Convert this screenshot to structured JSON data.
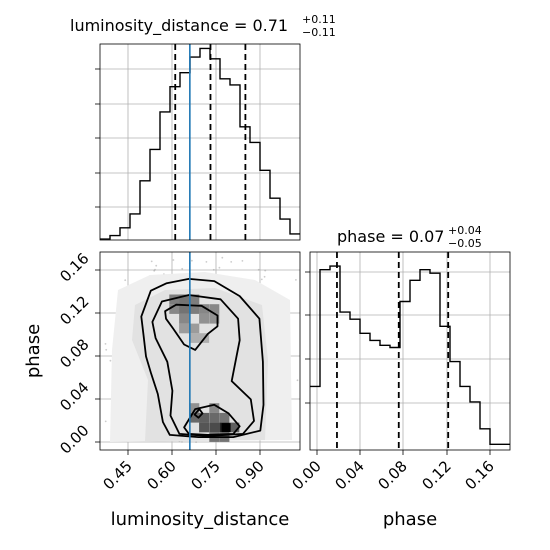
{
  "chart_data": [
    {
      "type": "histogram",
      "panel": "luminosity_distance marginal",
      "title": {
        "main": "luminosity_distance = 0.71",
        "upper": "+0.11",
        "lower": "−0.11"
      },
      "xlim": [
        0.36,
        0.99
      ],
      "bin_edges": [
        0.36,
        0.3915,
        0.423,
        0.4545,
        0.486,
        0.5175,
        0.549,
        0.5805,
        0.612,
        0.6435,
        0.675,
        0.7065,
        0.738,
        0.7695,
        0.801,
        0.8325,
        0.864,
        0.8955,
        0.927,
        0.9585,
        0.99
      ],
      "counts": [
        1,
        5,
        14,
        30,
        68,
        104,
        147,
        176,
        192,
        210,
        220,
        208,
        185,
        178,
        130,
        112,
        80,
        48,
        24,
        7
      ],
      "quantiles": [
        0.597,
        0.708,
        0.818
      ],
      "truth": 0.643
    },
    {
      "type": "histogram2d",
      "panel": "phase vs luminosity_distance",
      "xlabel": "luminosity_distance",
      "ylabel": "phase",
      "xlim": [
        0.36,
        0.99
      ],
      "ylim": [
        -0.012,
        0.172
      ],
      "xticks": [
        "0.45",
        "0.60",
        "0.75",
        "0.90"
      ],
      "yticks": [
        "0.00",
        "0.04",
        "0.08",
        "0.12",
        "0.16"
      ],
      "truth_x": 0.643,
      "density_cells": [
        {
          "x": 0.594,
          "y": 0.128,
          "v": 0.55
        },
        {
          "x": 0.625,
          "y": 0.128,
          "v": 0.6
        },
        {
          "x": 0.657,
          "y": 0.128,
          "v": 0.55
        },
        {
          "x": 0.594,
          "y": 0.119,
          "v": 0.5
        },
        {
          "x": 0.625,
          "y": 0.119,
          "v": 0.6
        },
        {
          "x": 0.657,
          "y": 0.119,
          "v": 0.55
        },
        {
          "x": 0.688,
          "y": 0.119,
          "v": 0.5
        },
        {
          "x": 0.72,
          "y": 0.119,
          "v": 0.5
        },
        {
          "x": 0.625,
          "y": 0.11,
          "v": 0.5
        },
        {
          "x": 0.688,
          "y": 0.11,
          "v": 0.45
        },
        {
          "x": 0.72,
          "y": 0.11,
          "v": 0.45
        },
        {
          "x": 0.625,
          "y": 0.101,
          "v": 0.4
        },
        {
          "x": 0.657,
          "y": 0.101,
          "v": 0.4
        },
        {
          "x": 0.657,
          "y": 0.092,
          "v": 0.3
        },
        {
          "x": 0.688,
          "y": 0.092,
          "v": 0.3
        },
        {
          "x": 0.657,
          "y": 0.027,
          "v": 0.45
        },
        {
          "x": 0.72,
          "y": 0.027,
          "v": 0.5
        },
        {
          "x": 0.657,
          "y": 0.018,
          "v": 0.65
        },
        {
          "x": 0.688,
          "y": 0.018,
          "v": 0.7
        },
        {
          "x": 0.72,
          "y": 0.018,
          "v": 0.65
        },
        {
          "x": 0.752,
          "y": 0.018,
          "v": 0.6
        },
        {
          "x": 0.688,
          "y": 0.009,
          "v": 0.75
        },
        {
          "x": 0.72,
          "y": 0.009,
          "v": 0.8
        },
        {
          "x": 0.752,
          "y": 0.009,
          "v": 1.0
        },
        {
          "x": 0.783,
          "y": 0.009,
          "v": 0.7
        },
        {
          "x": 0.72,
          "y": 0.0,
          "v": 0.6
        },
        {
          "x": 0.752,
          "y": 0.0,
          "v": 0.6
        }
      ],
      "contours": [
        {
          "level": "outer",
          "points": [
            [
              0.49,
              0.112
            ],
            [
              0.52,
              0.136
            ],
            [
              0.57,
              0.143
            ],
            [
              0.64,
              0.147
            ],
            [
              0.72,
              0.145
            ],
            [
              0.8,
              0.131
            ],
            [
              0.862,
              0.11
            ],
            [
              0.873,
              0.07
            ],
            [
              0.875,
              0.03
            ],
            [
              0.865,
              0.006
            ],
            [
              0.78,
              0.0
            ],
            [
              0.67,
              0.0
            ],
            [
              0.58,
              0.002
            ],
            [
              0.558,
              0.014
            ],
            [
              0.542,
              0.04
            ],
            [
              0.52,
              0.06
            ],
            [
              0.505,
              0.075
            ],
            [
              0.497,
              0.095
            ]
          ]
        },
        {
          "level": "middle",
          "points": [
            [
              0.525,
              0.107
            ],
            [
              0.555,
              0.126
            ],
            [
              0.64,
              0.132
            ],
            [
              0.74,
              0.128
            ],
            [
              0.795,
              0.11
            ],
            [
              0.8,
              0.09
            ],
            [
              0.79,
              0.075
            ],
            [
              0.775,
              0.052
            ],
            [
              0.835,
              0.035
            ],
            [
              0.845,
              0.015
            ],
            [
              0.81,
              0.003
            ],
            [
              0.7,
              0.001
            ],
            [
              0.61,
              0.003
            ],
            [
              0.582,
              0.02
            ],
            [
              0.588,
              0.043
            ],
            [
              0.572,
              0.07
            ],
            [
              0.535,
              0.092
            ]
          ]
        },
        {
          "level": "inner",
          "points": [
            [
              0.565,
              0.117
            ],
            [
              0.6,
              0.123
            ],
            [
              0.68,
              0.122
            ],
            [
              0.73,
              0.113
            ],
            [
              0.73,
              0.103
            ],
            [
              0.7,
              0.096
            ],
            [
              0.66,
              0.081
            ],
            [
              0.625,
              0.086
            ],
            [
              0.59,
              0.101
            ],
            [
              0.568,
              0.11
            ]
          ]
        },
        {
          "level": "inner-bottom",
          "points": [
            [
              0.625,
              0.009
            ],
            [
              0.66,
              0.026
            ],
            [
              0.72,
              0.03
            ],
            [
              0.765,
              0.022
            ],
            [
              0.8,
              0.01
            ],
            [
              0.78,
              0.003
            ],
            [
              0.7,
              0.002
            ],
            [
              0.64,
              0.003
            ]
          ]
        },
        {
          "level": "blob",
          "points": [
            [
              0.658,
              0.021
            ],
            [
              0.673,
              0.026
            ],
            [
              0.683,
              0.022
            ],
            [
              0.67,
              0.018
            ]
          ]
        }
      ]
    },
    {
      "type": "histogram",
      "panel": "phase marginal",
      "xlabel": "phase",
      "title": {
        "main": "phase = 0.07",
        "upper": "+0.04",
        "lower": "−0.05"
      },
      "xlim": [
        -0.006,
        0.172
      ],
      "xticks": [
        "0.00",
        "0.04",
        "0.08",
        "0.12",
        "0.16"
      ],
      "bin_edges": [
        -0.006,
        0.0029,
        0.0118,
        0.0207,
        0.0296,
        0.0385,
        0.0474,
        0.0563,
        0.0652,
        0.0741,
        0.083,
        0.0919,
        0.1008,
        0.1097,
        0.1186,
        0.1275,
        0.1364,
        0.1453,
        0.1542,
        0.1631,
        0.172
      ],
      "counts": [
        90,
        255,
        260,
        195,
        185,
        165,
        155,
        148,
        145,
        210,
        240,
        255,
        250,
        175,
        125,
        90,
        68,
        30,
        8,
        8
      ],
      "quantiles": [
        0.018,
        0.073,
        0.117
      ]
    }
  ]
}
